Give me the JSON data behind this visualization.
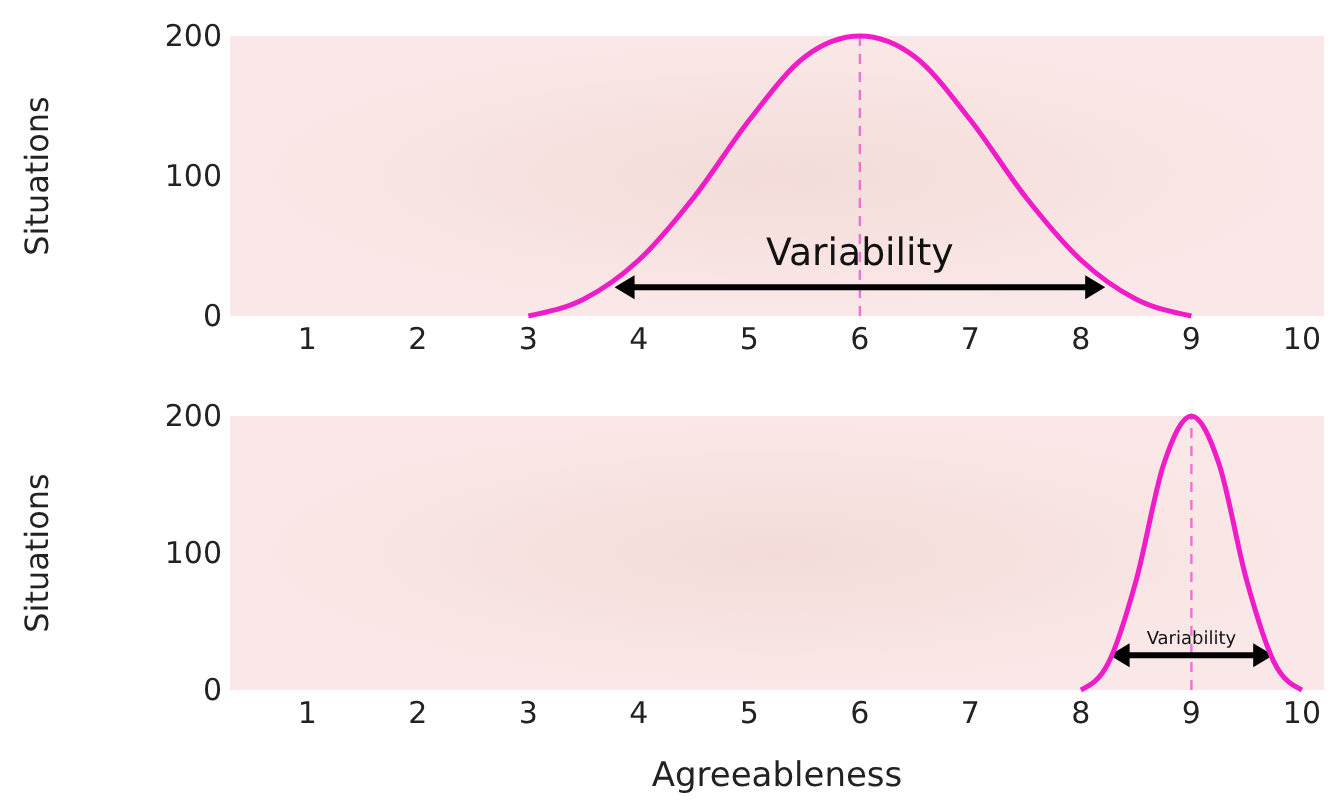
{
  "chart_data": [
    {
      "type": "line",
      "ylabel": "Situations",
      "x": [
        3,
        3.5,
        4,
        4.5,
        5,
        5.5,
        6,
        6.5,
        7,
        7.5,
        8,
        8.5,
        9
      ],
      "series": [
        {
          "color": "#f01cc8",
          "values": [
            0,
            12,
            40,
            85,
            140,
            185,
            200,
            185,
            140,
            85,
            40,
            12,
            0
          ]
        }
      ],
      "xlim": [
        0.3,
        10.2
      ],
      "ylim": [
        0,
        200
      ],
      "xticks": [
        1,
        2,
        3,
        4,
        5,
        6,
        7,
        8,
        9,
        10
      ],
      "yticks": [
        0,
        100,
        200
      ],
      "grid": false,
      "marker": "none",
      "line_style": "solid",
      "ref_lines": [
        {
          "axis": "x",
          "value": 6,
          "color": "#f070d8",
          "line_style": "dashed"
        }
      ],
      "annotations": [
        {
          "text": "Variability",
          "x": 6,
          "y": 30
        }
      ]
    },
    {
      "type": "line",
      "ylabel": "Situations",
      "xlabel": "Agreeableness",
      "x": [
        8,
        8.25,
        8.5,
        8.75,
        9,
        9.25,
        9.5,
        9.75,
        10
      ],
      "series": [
        {
          "color": "#f01cc8",
          "values": [
            0,
            20,
            80,
            165,
            200,
            165,
            80,
            20,
            0
          ]
        }
      ],
      "xlim": [
        0.3,
        10.2
      ],
      "ylim": [
        0,
        200
      ],
      "xticks": [
        1,
        2,
        3,
        4,
        5,
        6,
        7,
        8,
        9,
        10
      ],
      "yticks": [
        0,
        100,
        200
      ],
      "grid": false,
      "marker": "none",
      "line_style": "solid",
      "ref_lines": [
        {
          "axis": "x",
          "value": 9,
          "color": "#f070d8",
          "line_style": "dashed"
        }
      ],
      "annotations": [
        {
          "text": "Variability",
          "x": 9,
          "y": 30
        }
      ]
    }
  ]
}
